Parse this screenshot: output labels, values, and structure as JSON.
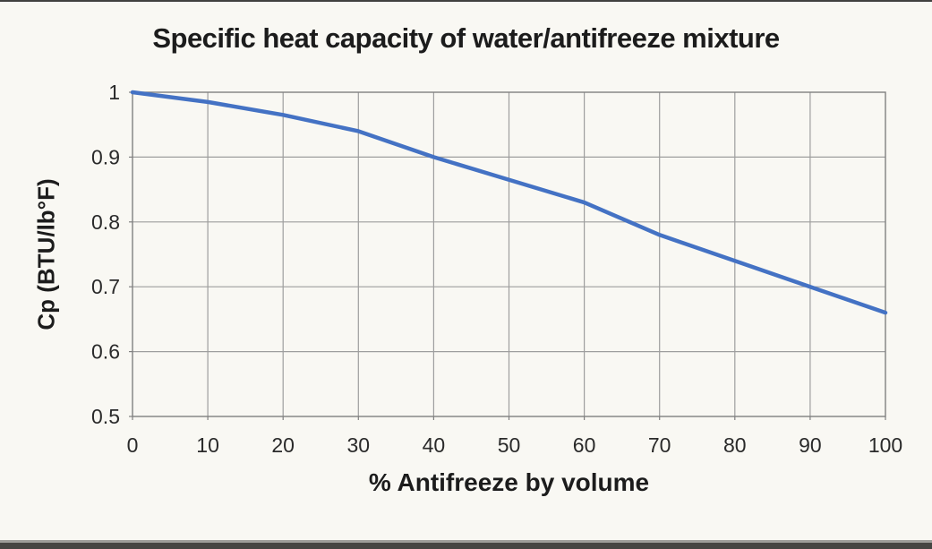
{
  "page": {
    "background": "#f9f8f3",
    "top_rule_color": "#41413f",
    "bottom_rule_color": "#454542"
  },
  "chart_data": {
    "type": "line",
    "title": "Specific heat capacity of water/antifreeze mixture",
    "xlabel": "% Antifreeze by volume",
    "ylabel": "Cp (BTU/lb°F)",
    "x": [
      0,
      10,
      20,
      30,
      40,
      50,
      60,
      70,
      80,
      90,
      100
    ],
    "y": [
      1.0,
      0.985,
      0.965,
      0.94,
      0.9,
      0.865,
      0.83,
      0.78,
      0.74,
      0.7,
      0.66
    ],
    "xlim": [
      0,
      100
    ],
    "ylim": [
      0.5,
      1.0
    ],
    "xticks": [
      0,
      10,
      20,
      30,
      40,
      50,
      60,
      70,
      80,
      90,
      100
    ],
    "xtick_labels": [
      "0",
      "10",
      "20",
      "30",
      "40",
      "50",
      "60",
      "70",
      "80",
      "90",
      "100"
    ],
    "yticks": [
      1.0,
      0.9,
      0.8,
      0.7,
      0.6,
      0.5
    ],
    "ytick_labels": [
      "1",
      "0.9",
      "0.8",
      "0.7",
      "0.6",
      "0.5"
    ],
    "grid": true,
    "legend": "none",
    "colors": {
      "line": "#4472c4",
      "grid": "#9e9e9e",
      "axis_frame": "#808080",
      "tick_text": "#2a2a2a"
    }
  }
}
